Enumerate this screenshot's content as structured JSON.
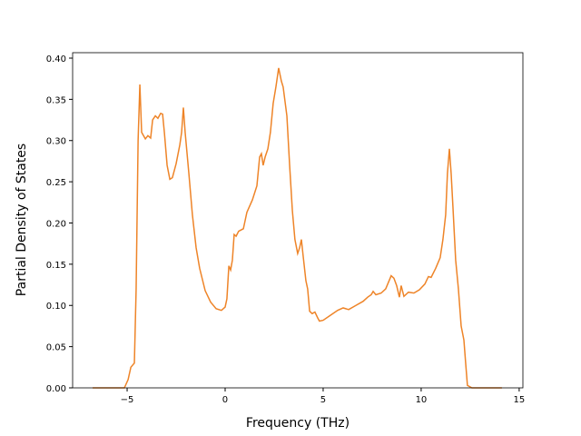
{
  "chart_data": {
    "type": "line",
    "x_label": "Frequency (THz)",
    "y_label": "Partial Density of States",
    "color": "#ee8428",
    "x": [
      -6.76,
      -5.14,
      -4.95,
      -4.81,
      -4.63,
      -4.54,
      -4.44,
      -4.35,
      -4.26,
      -4.07,
      -3.94,
      -3.8,
      -3.7,
      -3.56,
      -3.43,
      -3.29,
      -3.19,
      -3.1,
      -2.96,
      -2.82,
      -2.69,
      -2.5,
      -2.31,
      -2.22,
      -2.13,
      -2.04,
      -1.85,
      -1.67,
      -1.48,
      -1.3,
      -1.02,
      -0.74,
      -0.46,
      -0.19,
      0,
      0.09,
      0.19,
      0.28,
      0.37,
      0.46,
      0.56,
      0.69,
      0.93,
      1.11,
      1.39,
      1.62,
      1.76,
      1.85,
      1.94,
      2.04,
      2.18,
      2.31,
      2.45,
      2.59,
      2.73,
      2.87,
      2.96,
      3.15,
      3.29,
      3.43,
      3.56,
      3.7,
      3.8,
      3.89,
      3.98,
      4.12,
      4.21,
      4.31,
      4.44,
      4.58,
      4.72,
      4.81,
      5,
      5.37,
      5.74,
      6.02,
      6.3,
      6.67,
      7.04,
      7.27,
      7.45,
      7.55,
      7.69,
      7.96,
      8.19,
      8.33,
      8.47,
      8.61,
      8.75,
      8.89,
      8.98,
      9.12,
      9.35,
      9.63,
      9.91,
      10.19,
      10.37,
      10.51,
      10.74,
      10.97,
      11.11,
      11.25,
      11.34,
      11.44,
      11.53,
      11.62,
      11.76,
      11.9,
      12.04,
      12.18,
      12.27,
      12.36,
      12.59,
      14.12
    ],
    "values": [
      0,
      0,
      0.01,
      0.025,
      0.03,
      0.12,
      0.3,
      0.368,
      0.31,
      0.302,
      0.306,
      0.303,
      0.325,
      0.33,
      0.327,
      0.333,
      0.332,
      0.31,
      0.27,
      0.253,
      0.255,
      0.272,
      0.295,
      0.31,
      0.34,
      0.31,
      0.26,
      0.21,
      0.17,
      0.145,
      0.118,
      0.104,
      0.096,
      0.094,
      0.098,
      0.108,
      0.148,
      0.143,
      0.155,
      0.186,
      0.184,
      0.19,
      0.193,
      0.213,
      0.228,
      0.245,
      0.28,
      0.284,
      0.27,
      0.28,
      0.29,
      0.31,
      0.345,
      0.365,
      0.388,
      0.372,
      0.365,
      0.33,
      0.27,
      0.215,
      0.18,
      0.163,
      0.17,
      0.18,
      0.16,
      0.13,
      0.12,
      0.093,
      0.09,
      0.092,
      0.085,
      0.081,
      0.082,
      0.088,
      0.094,
      0.097,
      0.095,
      0.1,
      0.105,
      0.11,
      0.113,
      0.117,
      0.113,
      0.115,
      0.12,
      0.128,
      0.136,
      0.133,
      0.124,
      0.11,
      0.124,
      0.111,
      0.116,
      0.115,
      0.119,
      0.126,
      0.135,
      0.134,
      0.145,
      0.158,
      0.18,
      0.21,
      0.26,
      0.29,
      0.26,
      0.22,
      0.155,
      0.12,
      0.075,
      0.058,
      0.03,
      0.003,
      0,
      0
    ],
    "xlim": [
      -7.78,
      15.19
    ],
    "xticks": [
      {
        "value": -5,
        "label": "−5"
      },
      0,
      5,
      10,
      15
    ],
    "ylim": [
      0,
      0.4066
    ],
    "yticks": [
      {
        "value": 0,
        "label": "0.00"
      },
      {
        "value": 0.05,
        "label": "0.05"
      },
      {
        "value": 0.1,
        "label": "0.10"
      },
      {
        "value": 0.15,
        "label": "0.15"
      },
      {
        "value": 0.2,
        "label": "0.20"
      },
      {
        "value": 0.25,
        "label": "0.25"
      },
      {
        "value": 0.3,
        "label": "0.30"
      },
      {
        "value": 0.35,
        "label": "0.35"
      },
      {
        "value": 0.4,
        "label": "0.40"
      }
    ]
  }
}
